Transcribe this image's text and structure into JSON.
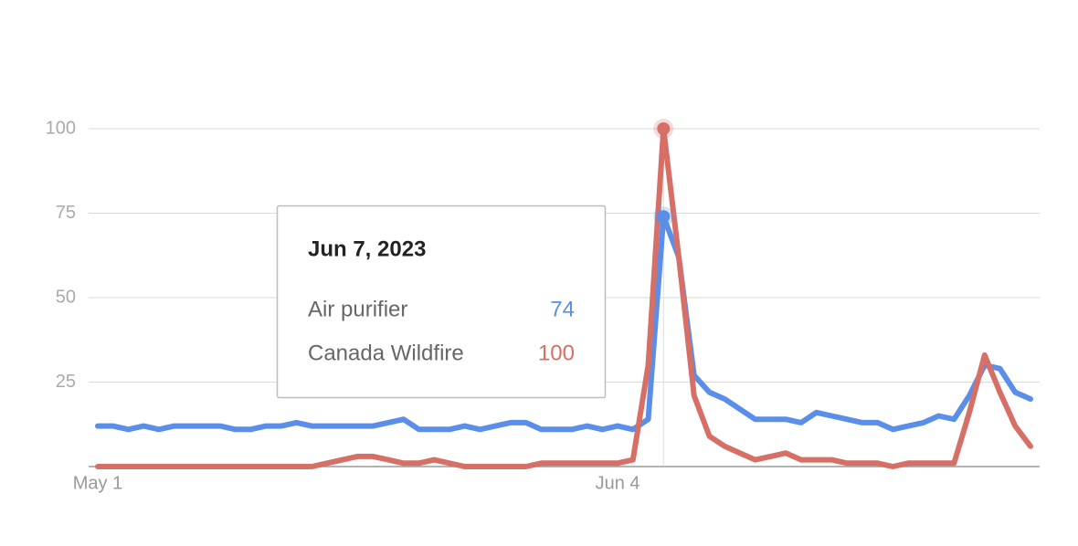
{
  "chart_data": {
    "type": "line",
    "categories": [
      "May 1",
      null,
      null,
      null,
      null,
      null,
      null,
      null,
      null,
      null,
      null,
      null,
      null,
      null,
      null,
      null,
      null,
      null,
      null,
      null,
      null,
      null,
      null,
      null,
      null,
      null,
      null,
      null,
      null,
      null,
      null,
      null,
      null,
      null,
      "Jun 4",
      null,
      null,
      null,
      null,
      null,
      null,
      null,
      null,
      null,
      null,
      null,
      null,
      null,
      null,
      null,
      null,
      null,
      null,
      null,
      null,
      null,
      null,
      null,
      null,
      null,
      null,
      null
    ],
    "series": [
      {
        "name": "Air purifier",
        "color": "#5a8ee9",
        "values": [
          12,
          12,
          11,
          12,
          11,
          12,
          12,
          12,
          12,
          11,
          11,
          12,
          12,
          13,
          12,
          12,
          12,
          12,
          12,
          13,
          14,
          11,
          11,
          11,
          12,
          11,
          12,
          13,
          13,
          11,
          11,
          11,
          12,
          11,
          12,
          11,
          14,
          74,
          62,
          27,
          22,
          20,
          17,
          14,
          14,
          14,
          13,
          16,
          15,
          14,
          13,
          13,
          11,
          12,
          13,
          15,
          14,
          21,
          30,
          29,
          22,
          20
        ]
      },
      {
        "name": "Canada Wildfire",
        "color": "#d66f66",
        "values": [
          0,
          0,
          0,
          0,
          0,
          0,
          0,
          0,
          0,
          0,
          0,
          0,
          0,
          0,
          0,
          1,
          2,
          3,
          3,
          2,
          1,
          1,
          2,
          1,
          0,
          0,
          0,
          0,
          0,
          1,
          1,
          1,
          1,
          1,
          1,
          2,
          30,
          100,
          62,
          21,
          9,
          6,
          4,
          2,
          3,
          4,
          2,
          2,
          2,
          1,
          1,
          1,
          0,
          1,
          1,
          1,
          1,
          16,
          33,
          22,
          12,
          6
        ]
      }
    ],
    "ylim": [
      0,
      100
    ],
    "yticks": [
      25,
      50,
      75,
      100
    ],
    "grid": true,
    "tooltip": {
      "date": "Jun 7, 2023",
      "hover_index": 37
    }
  }
}
